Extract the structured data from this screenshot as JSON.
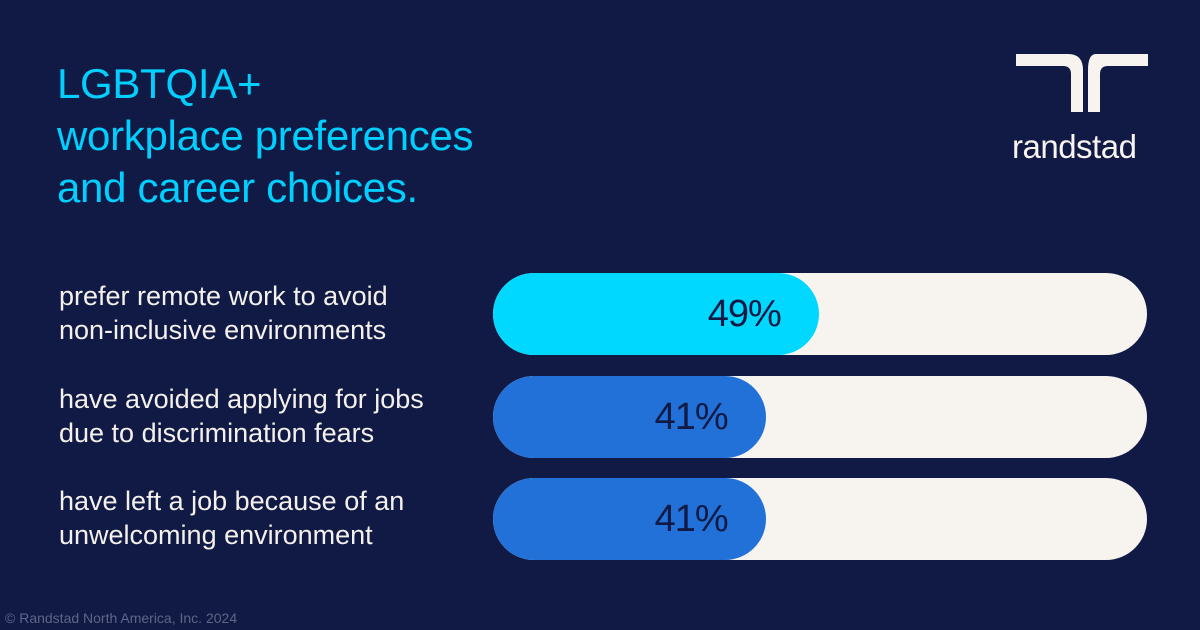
{
  "header": {
    "title_lines": [
      "LGBTQIA+",
      "workplace preferences",
      "and career choices."
    ],
    "brand": "randstad"
  },
  "colors": {
    "background": "#111a45",
    "title": "#00cfff",
    "track": "#f7f4ef",
    "highlight_fill": "#00d8ff",
    "standard_fill": "#2271d8",
    "value_text": "#111a45"
  },
  "chart_data": {
    "type": "bar",
    "orientation": "horizontal",
    "title": "LGBTQIA+ workplace preferences and career choices.",
    "categories": [
      [
        "prefer remote work to avoid",
        "non-inclusive environments"
      ],
      [
        "have avoided applying for jobs",
        "due to discrimination fears"
      ],
      [
        "have left a job because of an",
        "unwelcoming environment"
      ]
    ],
    "values": [
      49,
      41,
      41
    ],
    "value_labels": [
      "49%",
      "41%",
      "41%"
    ],
    "unit": "%",
    "xlim": [
      0,
      100
    ]
  },
  "footer": {
    "copyright": "© Randstad North America, Inc. 2024"
  }
}
